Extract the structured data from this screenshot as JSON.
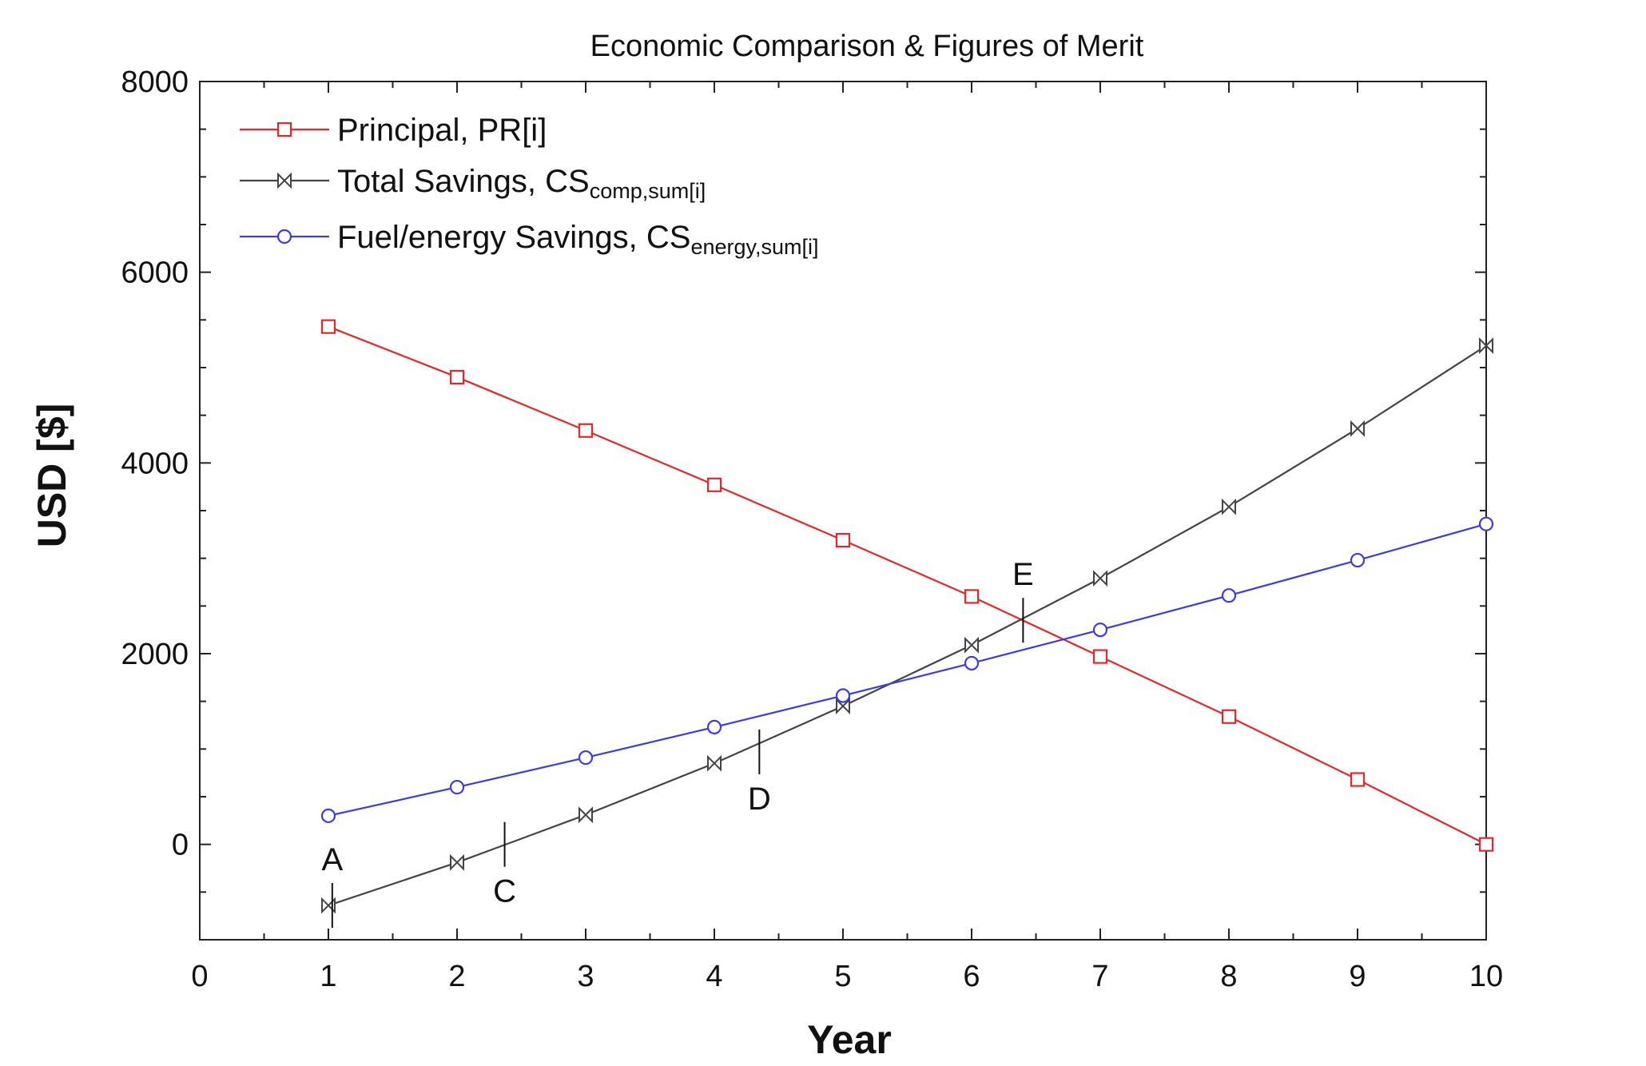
{
  "chart_data": {
    "type": "line",
    "title": "Economic Comparison & Figures of Merit",
    "xlabel": "Year",
    "ylabel": "USD [$]",
    "xlim": [
      0,
      10
    ],
    "ylim": [
      -1000,
      8000
    ],
    "x_ticks": [
      0,
      1,
      2,
      3,
      4,
      5,
      6,
      7,
      8,
      9,
      10
    ],
    "y_ticks": [
      0,
      2000,
      4000,
      6000,
      8000
    ],
    "grid": false,
    "legend_position": "top-left",
    "series": [
      {
        "name": "Principal, PR[i]",
        "legend_main": "Principal, PR[i]",
        "legend_sub": "",
        "color": "#e8262a",
        "marker": "square",
        "x": [
          1,
          2,
          3,
          4,
          5,
          6,
          7,
          8,
          9,
          10
        ],
        "values": [
          5430,
          4900,
          4340,
          3770,
          3190,
          2600,
          1970,
          1340,
          680,
          0
        ]
      },
      {
        "name": "Total Savings, CScomp,sum[i]",
        "legend_main": "Total Savings, CS",
        "legend_sub": "comp,sum[i]",
        "color": "#444444",
        "marker": "bowtie",
        "x": [
          1,
          2,
          3,
          4,
          5,
          6,
          7,
          8,
          9,
          10
        ],
        "values": [
          -640,
          -190,
          310,
          850,
          1450,
          2090,
          2790,
          3540,
          4360,
          5230
        ]
      },
      {
        "name": "Fuel/energy Savings, CSenergy,sum[i]",
        "legend_main": "Fuel/energy Savings, CS",
        "legend_sub": "energy,sum[i]",
        "color": "#3b3bea",
        "marker": "circle",
        "x": [
          1,
          2,
          3,
          4,
          5,
          6,
          7,
          8,
          9,
          10
        ],
        "values": [
          300,
          600,
          910,
          1230,
          1560,
          1900,
          2250,
          2610,
          2980,
          3360
        ]
      }
    ],
    "annotations": [
      {
        "label": "A",
        "x": 1.03,
        "y": -640,
        "label_side": "above"
      },
      {
        "label": "C",
        "x": 2.37,
        "y": 0,
        "label_side": "below"
      },
      {
        "label": "D",
        "x": 4.35,
        "y": 970,
        "label_side": "below"
      },
      {
        "label": "E",
        "x": 6.4,
        "y": 2350,
        "label_side": "above"
      }
    ]
  }
}
